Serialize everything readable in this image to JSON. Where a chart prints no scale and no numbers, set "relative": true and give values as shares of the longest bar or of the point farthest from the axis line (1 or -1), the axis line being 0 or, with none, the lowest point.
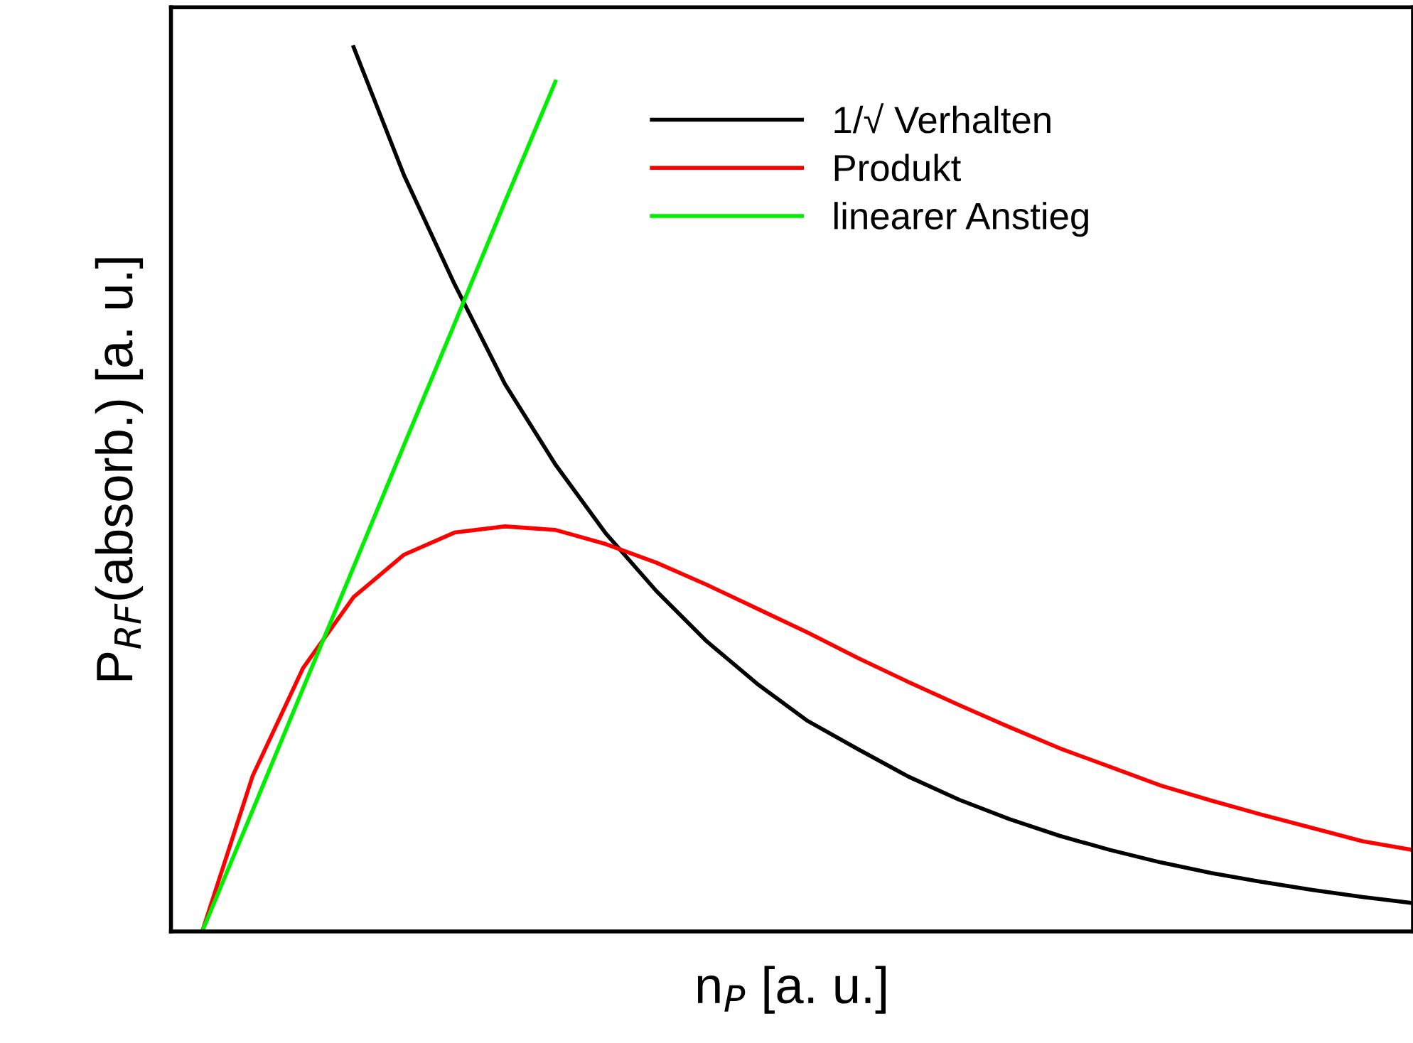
{
  "chart_data": {
    "type": "line",
    "relative": true,
    "xlabel": "n$_{P}$ [a. u.]",
    "ylabel": "P$_{RF}$(absorb.) [a. u.]",
    "legend": "top right",
    "grid": false,
    "marker": "none",
    "line_style": "solid",
    "categories": [
      null,
      null,
      null,
      null,
      null,
      null,
      null,
      null,
      null,
      null,
      null,
      null,
      null,
      null,
      null,
      null,
      null,
      null,
      null,
      null,
      null,
      null,
      null,
      null,
      null
    ],
    "series": [
      {
        "name": "1/√ Verhalten",
        "color": "#000000",
        "values": [
          null,
          null,
          null,
          1.0,
          0.855,
          0.732,
          0.619,
          0.528,
          0.45,
          0.385,
          0.328,
          0.28,
          0.238,
          0.206,
          0.175,
          0.149,
          0.127,
          0.108,
          0.092,
          0.078,
          0.066,
          0.056,
          0.047,
          0.039,
          0.032
        ]
      },
      {
        "name": "Produkt",
        "color": "#ff0000",
        "values": [
          0,
          0.176,
          0.298,
          0.378,
          0.426,
          0.451,
          0.458,
          0.454,
          0.438,
          0.417,
          0.392,
          0.365,
          0.338,
          0.309,
          0.282,
          0.256,
          0.231,
          0.207,
          0.186,
          0.165,
          0.148,
          0.132,
          0.117,
          0.102,
          0.092
        ]
      },
      {
        "name": "linearer Anstieg",
        "color": "#00ee00",
        "values": [
          0,
          0.137,
          0.275,
          0.412,
          0.55,
          0.687,
          0.825,
          0.961,
          null,
          null,
          null,
          null,
          null,
          null,
          null,
          null,
          null,
          null,
          null,
          null,
          null,
          null,
          null,
          null,
          null
        ]
      }
    ]
  }
}
